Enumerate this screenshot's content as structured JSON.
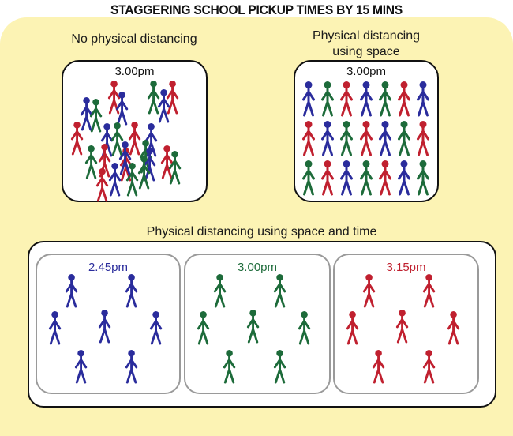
{
  "title": "STAGGERING SCHOOL PICKUP TIMES BY 15 MINS",
  "colors": {
    "b": "#2a2c9c",
    "g": "#1d6b3a",
    "r": "#c0202f",
    "background": "#fcf3b4"
  },
  "panels": {
    "no_distancing": {
      "label": "No physical distancing",
      "time": "3.00pm",
      "figure_colors": [
        "r",
        "b",
        "g",
        "r",
        "b",
        "b",
        "g",
        "r",
        "b",
        "g",
        "r",
        "b",
        "g",
        "r",
        "r",
        "g",
        "b",
        "b",
        "r",
        "g",
        "b",
        "g",
        "g",
        "r"
      ]
    },
    "space": {
      "label_line1": "Physical distancing",
      "label_line2": "using space",
      "time": "3.00pm",
      "rows": [
        [
          "b",
          "g",
          "r",
          "b",
          "g",
          "r",
          "b"
        ],
        [
          "r",
          "b",
          "g",
          "r",
          "b",
          "g",
          "r"
        ],
        [
          "g",
          "r",
          "b",
          "g",
          "r",
          "b",
          "g"
        ]
      ]
    },
    "space_and_time": {
      "label": "Physical distancing using space and time",
      "groups": [
        {
          "time": "2.45pm",
          "color": "b",
          "count": 7
        },
        {
          "time": "3.00pm",
          "color": "g",
          "count": 7
        },
        {
          "time": "3.15pm",
          "color": "r",
          "count": 7
        }
      ]
    }
  }
}
